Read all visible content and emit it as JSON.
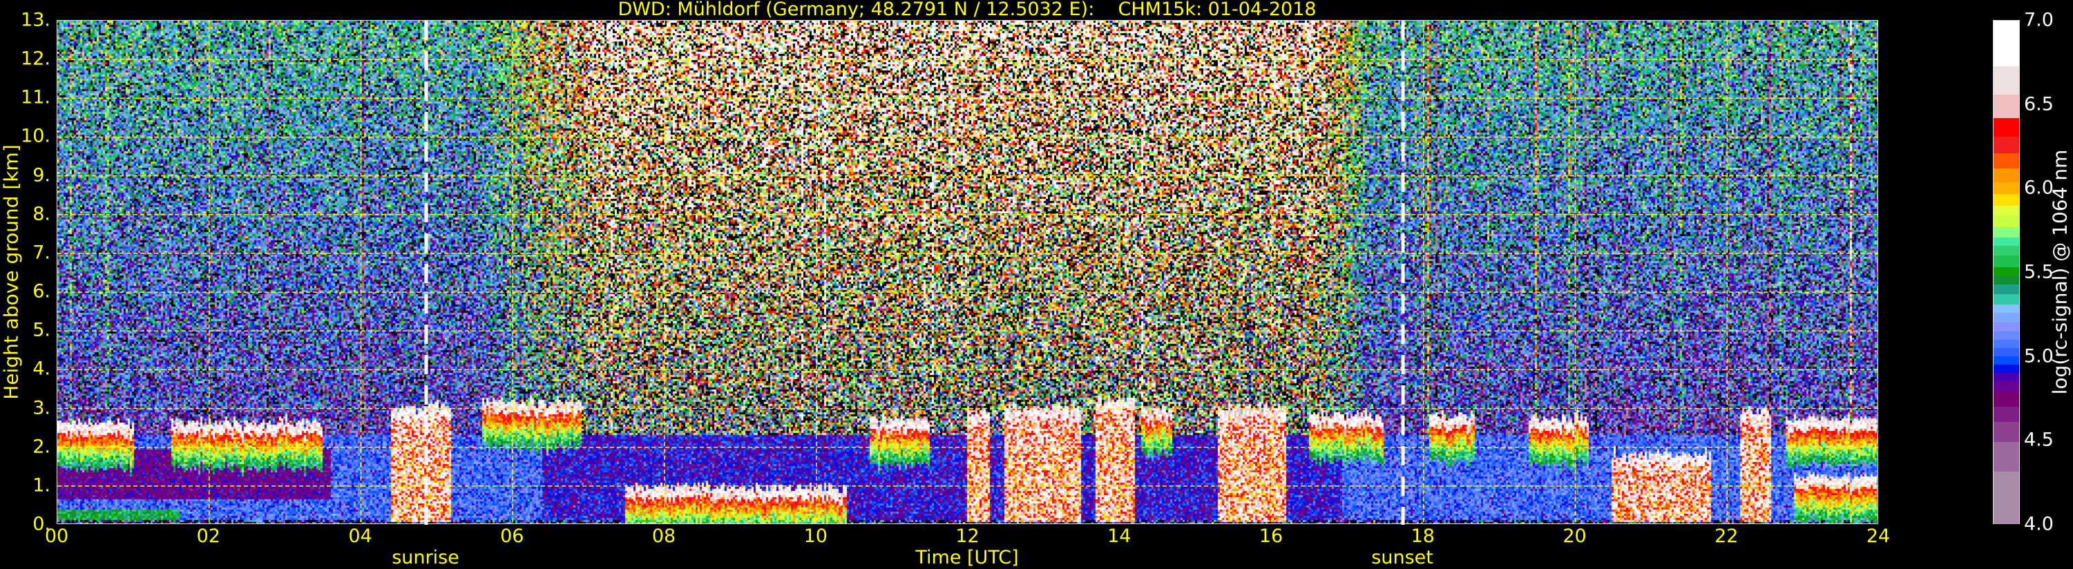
{
  "chart_data": {
    "type": "heatmap",
    "title": "DWD: Mühldorf (Germany; 48.2791 N / 12.5032 E):    CHM15k: 01-04-2018",
    "xlabel": "Time [UTC]",
    "ylabel": "Height above ground [km]",
    "xlim": [
      0,
      24
    ],
    "ylim": [
      0,
      13
    ],
    "x_ticks": [
      "00",
      "02",
      "04",
      "06",
      "08",
      "10",
      "12",
      "14",
      "16",
      "18",
      "20",
      "22",
      "24"
    ],
    "y_ticks": [
      "0.",
      "1.",
      "2.",
      "3.",
      "4.",
      "5.",
      "6.",
      "7.",
      "8.",
      "9.",
      "10.",
      "11.",
      "12.",
      "13."
    ],
    "grid": true,
    "grid_color": "#ffff00",
    "text_color": "#ffff00",
    "annotations": [
      {
        "label": "sunrise",
        "time_h": 4.86
      },
      {
        "label": "sunset",
        "time_h": 17.73
      }
    ],
    "colorbar": {
      "label": "log(rc-signal) @ 1064 nm",
      "range": [
        4.0,
        7.0
      ],
      "ticks": [
        "4.0",
        "4.5",
        "5.0",
        "5.5",
        "6.0",
        "6.5",
        "7.0"
      ],
      "bins": [
        {
          "from": 4.0,
          "to": 4.31,
          "color": "#a98ca8"
        },
        {
          "from": 4.31,
          "to": 4.49,
          "color": "#9d6aa0"
        },
        {
          "from": 4.49,
          "to": 4.61,
          "color": "#8e3f8e"
        },
        {
          "from": 4.61,
          "to": 4.7,
          "color": "#7f1f85"
        },
        {
          "from": 4.7,
          "to": 4.79,
          "color": "#780070"
        },
        {
          "from": 4.79,
          "to": 4.85,
          "color": "#6a0096"
        },
        {
          "from": 4.85,
          "to": 4.9,
          "color": "#4a00b0"
        },
        {
          "from": 4.9,
          "to": 4.95,
          "color": "#0010e8"
        },
        {
          "from": 4.95,
          "to": 5.0,
          "color": "#0050ff"
        },
        {
          "from": 5.0,
          "to": 5.05,
          "color": "#3060ff"
        },
        {
          "from": 5.05,
          "to": 5.1,
          "color": "#4a78ff"
        },
        {
          "from": 5.1,
          "to": 5.15,
          "color": "#6a88ff"
        },
        {
          "from": 5.15,
          "to": 5.2,
          "color": "#8a90ff"
        },
        {
          "from": 5.2,
          "to": 5.26,
          "color": "#80a8ff"
        },
        {
          "from": 5.26,
          "to": 5.31,
          "color": "#88c0ff"
        },
        {
          "from": 5.31,
          "to": 5.37,
          "color": "#30c8a8"
        },
        {
          "from": 5.37,
          "to": 5.43,
          "color": "#20a088"
        },
        {
          "from": 5.43,
          "to": 5.48,
          "color": "#109030"
        },
        {
          "from": 5.48,
          "to": 5.53,
          "color": "#10a000"
        },
        {
          "from": 5.53,
          "to": 5.6,
          "color": "#20c050"
        },
        {
          "from": 5.6,
          "to": 5.66,
          "color": "#30d070"
        },
        {
          "from": 5.66,
          "to": 5.71,
          "color": "#40e8a0"
        },
        {
          "from": 5.71,
          "to": 5.77,
          "color": "#88ff80"
        },
        {
          "from": 5.77,
          "to": 5.84,
          "color": "#c8ff40"
        },
        {
          "from": 5.84,
          "to": 5.9,
          "color": "#e0ff40"
        },
        {
          "from": 5.9,
          "to": 5.97,
          "color": "#ffe000"
        },
        {
          "from": 5.97,
          "to": 6.04,
          "color": "#ffb000"
        },
        {
          "from": 6.04,
          "to": 6.12,
          "color": "#ff9800"
        },
        {
          "from": 6.12,
          "to": 6.21,
          "color": "#ff5800"
        },
        {
          "from": 6.21,
          "to": 6.31,
          "color": "#f02020"
        },
        {
          "from": 6.31,
          "to": 6.42,
          "color": "#ff0000"
        },
        {
          "from": 6.42,
          "to": 6.56,
          "color": "#f0c0c0"
        },
        {
          "from": 6.56,
          "to": 6.73,
          "color": "#ece0e0"
        },
        {
          "from": 6.73,
          "to": 7.0,
          "color": "#ffffff"
        }
      ]
    },
    "cloud_layers": [
      {
        "start_h": 0.0,
        "end_h": 1.0,
        "top_km": 2.6,
        "deep": false
      },
      {
        "start_h": 1.5,
        "end_h": 3.5,
        "top_km": 2.6,
        "deep": false
      },
      {
        "start_h": 4.4,
        "end_h": 5.2,
        "top_km": 3.0,
        "deep": true
      },
      {
        "start_h": 5.6,
        "end_h": 6.9,
        "top_km": 3.15,
        "deep": false
      },
      {
        "start_h": 7.5,
        "end_h": 10.4,
        "top_km": 0.95,
        "deep": false
      },
      {
        "start_h": 10.7,
        "end_h": 11.5,
        "top_km": 2.7,
        "deep": false
      },
      {
        "start_h": 12.0,
        "end_h": 12.3,
        "top_km": 2.9,
        "deep": true
      },
      {
        "start_h": 12.5,
        "end_h": 13.5,
        "top_km": 3.0,
        "deep": true
      },
      {
        "start_h": 13.7,
        "end_h": 14.2,
        "top_km": 3.2,
        "deep": true
      },
      {
        "start_h": 14.3,
        "end_h": 14.7,
        "top_km": 3.0,
        "deep": false
      },
      {
        "start_h": 15.3,
        "end_h": 16.2,
        "top_km": 3.0,
        "deep": true
      },
      {
        "start_h": 16.5,
        "end_h": 17.5,
        "top_km": 2.8,
        "deep": false
      },
      {
        "start_h": 18.1,
        "end_h": 18.7,
        "top_km": 2.8,
        "deep": false
      },
      {
        "start_h": 19.4,
        "end_h": 20.2,
        "top_km": 2.7,
        "deep": false
      },
      {
        "start_h": 20.5,
        "end_h": 21.8,
        "top_km": 1.8,
        "deep": true
      },
      {
        "start_h": 22.2,
        "end_h": 22.6,
        "top_km": 2.9,
        "deep": true
      },
      {
        "start_h": 22.8,
        "end_h": 24.0,
        "top_km": 2.7,
        "deep": false
      },
      {
        "start_h": 22.9,
        "end_h": 24.0,
        "top_km": 1.2,
        "deep": false
      }
    ]
  }
}
